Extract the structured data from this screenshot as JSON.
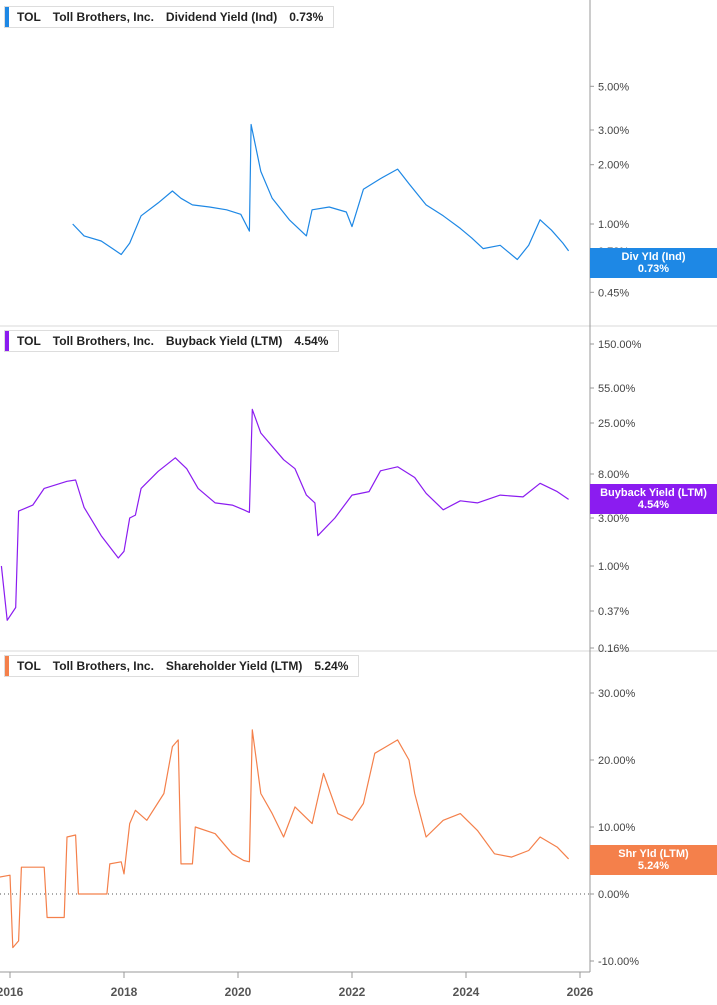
{
  "colors": {
    "div": "#1e88e5",
    "buyback": "#8b1cf0",
    "shareholder": "#f4804b",
    "grid": "#d9d9d9",
    "axis": "#999999"
  },
  "panels": [
    {
      "ticker": "TOL",
      "company": "Toll Brothers, Inc.",
      "metric": "Dividend Yield (Ind)",
      "value": "0.73%",
      "flag_label": "Div Yld (Ind)",
      "flag_value": "0.73%"
    },
    {
      "ticker": "TOL",
      "company": "Toll Brothers, Inc.",
      "metric": "Buyback Yield (LTM)",
      "value": "4.54%",
      "flag_label": "Buyback Yield (LTM)",
      "flag_value": "4.54%"
    },
    {
      "ticker": "TOL",
      "company": "Toll Brothers, Inc.",
      "metric": "Shareholder Yield (LTM)",
      "value": "5.24%",
      "flag_label": "Shr Yld (LTM)",
      "flag_value": "5.24%"
    }
  ],
  "chart_data": [
    {
      "type": "line",
      "title": "TOL Toll Brothers, Inc. Dividend Yield (Ind) 0.73%",
      "yscale": "log",
      "y_ticks": [
        "5.00%",
        "3.00%",
        "2.00%",
        "1.00%",
        "0.73%",
        "0.45%"
      ],
      "x_ticks": [
        "2016",
        "2018",
        "2020",
        "2022",
        "2024",
        "2026"
      ],
      "series": [
        {
          "name": "Dividend Yield (Ind)",
          "points": [
            [
              2017.1,
              1.0
            ],
            [
              2017.3,
              0.87
            ],
            [
              2017.6,
              0.82
            ],
            [
              2017.8,
              0.75
            ],
            [
              2017.95,
              0.7
            ],
            [
              2018.1,
              0.8
            ],
            [
              2018.3,
              1.1
            ],
            [
              2018.6,
              1.28
            ],
            [
              2018.85,
              1.47
            ],
            [
              2019.0,
              1.35
            ],
            [
              2019.2,
              1.25
            ],
            [
              2019.5,
              1.22
            ],
            [
              2019.8,
              1.18
            ],
            [
              2020.05,
              1.12
            ],
            [
              2020.2,
              0.92
            ],
            [
              2020.23,
              3.2
            ],
            [
              2020.4,
              1.85
            ],
            [
              2020.6,
              1.35
            ],
            [
              2020.9,
              1.05
            ],
            [
              2021.2,
              0.87
            ],
            [
              2021.3,
              1.18
            ],
            [
              2021.6,
              1.22
            ],
            [
              2021.9,
              1.15
            ],
            [
              2022.0,
              0.97
            ],
            [
              2022.2,
              1.5
            ],
            [
              2022.5,
              1.7
            ],
            [
              2022.8,
              1.9
            ],
            [
              2023.0,
              1.6
            ],
            [
              2023.3,
              1.25
            ],
            [
              2023.6,
              1.1
            ],
            [
              2023.9,
              0.95
            ],
            [
              2024.1,
              0.85
            ],
            [
              2024.3,
              0.75
            ],
            [
              2024.6,
              0.78
            ],
            [
              2024.9,
              0.66
            ],
            [
              2025.1,
              0.78
            ],
            [
              2025.3,
              1.05
            ],
            [
              2025.5,
              0.93
            ],
            [
              2025.7,
              0.8
            ],
            [
              2025.8,
              0.73
            ]
          ]
        }
      ]
    },
    {
      "type": "line",
      "title": "TOL Toll Brothers, Inc. Buyback Yield (LTM) 4.54%",
      "yscale": "symlog",
      "y_ticks": [
        "150.00%",
        "55.00%",
        "25.00%",
        "8.00%",
        "3.00%",
        "1.00%",
        "0.37%",
        "0.16%"
      ],
      "x_ticks": [
        "2016",
        "2018",
        "2020",
        "2022",
        "2024",
        "2026"
      ],
      "series": [
        {
          "name": "Buyback Yield (LTM)",
          "points": [
            [
              2015.85,
              1.0
            ],
            [
              2015.95,
              0.3
            ],
            [
              2016.1,
              0.4
            ],
            [
              2016.15,
              3.5
            ],
            [
              2016.4,
              4.0
            ],
            [
              2016.6,
              5.8
            ],
            [
              2017.0,
              6.8
            ],
            [
              2017.15,
              7.0
            ],
            [
              2017.3,
              3.8
            ],
            [
              2017.6,
              2.0
            ],
            [
              2017.9,
              1.2
            ],
            [
              2018.0,
              1.4
            ],
            [
              2018.1,
              3.0
            ],
            [
              2018.2,
              3.2
            ],
            [
              2018.3,
              5.8
            ],
            [
              2018.6,
              8.5
            ],
            [
              2018.9,
              11.5
            ],
            [
              2019.1,
              9.0
            ],
            [
              2019.3,
              5.8
            ],
            [
              2019.6,
              4.2
            ],
            [
              2019.9,
              4.0
            ],
            [
              2020.1,
              3.6
            ],
            [
              2020.2,
              3.4
            ],
            [
              2020.25,
              34.0
            ],
            [
              2020.4,
              20.0
            ],
            [
              2020.8,
              11.0
            ],
            [
              2021.0,
              9.0
            ],
            [
              2021.2,
              5.0
            ],
            [
              2021.35,
              4.2
            ],
            [
              2021.4,
              2.0
            ],
            [
              2021.7,
              3.0
            ],
            [
              2022.0,
              5.0
            ],
            [
              2022.3,
              5.4
            ],
            [
              2022.5,
              8.6
            ],
            [
              2022.8,
              9.4
            ],
            [
              2023.1,
              7.4
            ],
            [
              2023.3,
              5.2
            ],
            [
              2023.6,
              3.6
            ],
            [
              2023.9,
              4.4
            ],
            [
              2024.2,
              4.2
            ],
            [
              2024.6,
              5.0
            ],
            [
              2025.0,
              4.8
            ],
            [
              2025.3,
              6.5
            ],
            [
              2025.6,
              5.4
            ],
            [
              2025.8,
              4.54
            ]
          ]
        }
      ]
    },
    {
      "type": "line",
      "title": "TOL Toll Brothers, Inc. Shareholder Yield (LTM) 5.24%",
      "yscale": "linear",
      "ylim": [
        -10,
        35
      ],
      "y_ticks": [
        "30.00%",
        "20.00%",
        "10.00%",
        "0.00%",
        "-10.00%"
      ],
      "x_ticks": [
        "2016",
        "2018",
        "2020",
        "2022",
        "2024",
        "2026"
      ],
      "series": [
        {
          "name": "Shareholder Yield (LTM)",
          "points": [
            [
              2015.8,
              2.5
            ],
            [
              2016.0,
              2.8
            ],
            [
              2016.05,
              -8.0
            ],
            [
              2016.15,
              -7.0
            ],
            [
              2016.2,
              4.0
            ],
            [
              2016.6,
              4.0
            ],
            [
              2016.65,
              -3.5
            ],
            [
              2016.95,
              -3.5
            ],
            [
              2017.0,
              8.5
            ],
            [
              2017.15,
              8.8
            ],
            [
              2017.2,
              0.0
            ],
            [
              2017.7,
              0.0
            ],
            [
              2017.75,
              4.5
            ],
            [
              2017.95,
              4.8
            ],
            [
              2018.0,
              3.0
            ],
            [
              2018.1,
              10.5
            ],
            [
              2018.2,
              12.5
            ],
            [
              2018.4,
              11.0
            ],
            [
              2018.7,
              15.0
            ],
            [
              2018.85,
              22.0
            ],
            [
              2018.95,
              23.0
            ],
            [
              2019.0,
              4.5
            ],
            [
              2019.2,
              4.5
            ],
            [
              2019.25,
              10.0
            ],
            [
              2019.6,
              9.0
            ],
            [
              2019.9,
              6.0
            ],
            [
              2020.1,
              5.0
            ],
            [
              2020.2,
              4.8
            ],
            [
              2020.25,
              24.5
            ],
            [
              2020.4,
              15.0
            ],
            [
              2020.6,
              12.0
            ],
            [
              2020.8,
              8.5
            ],
            [
              2021.0,
              13.0
            ],
            [
              2021.3,
              10.5
            ],
            [
              2021.5,
              18.0
            ],
            [
              2021.75,
              12.0
            ],
            [
              2022.0,
              11.0
            ],
            [
              2022.2,
              13.5
            ],
            [
              2022.4,
              21.0
            ],
            [
              2022.6,
              22.0
            ],
            [
              2022.8,
              23.0
            ],
            [
              2023.0,
              20.0
            ],
            [
              2023.1,
              15.0
            ],
            [
              2023.3,
              8.5
            ],
            [
              2023.6,
              11.0
            ],
            [
              2023.9,
              12.0
            ],
            [
              2024.2,
              9.5
            ],
            [
              2024.5,
              6.0
            ],
            [
              2024.8,
              5.5
            ],
            [
              2025.1,
              6.5
            ],
            [
              2025.3,
              8.5
            ],
            [
              2025.6,
              7.0
            ],
            [
              2025.8,
              5.24
            ]
          ]
        }
      ]
    }
  ]
}
